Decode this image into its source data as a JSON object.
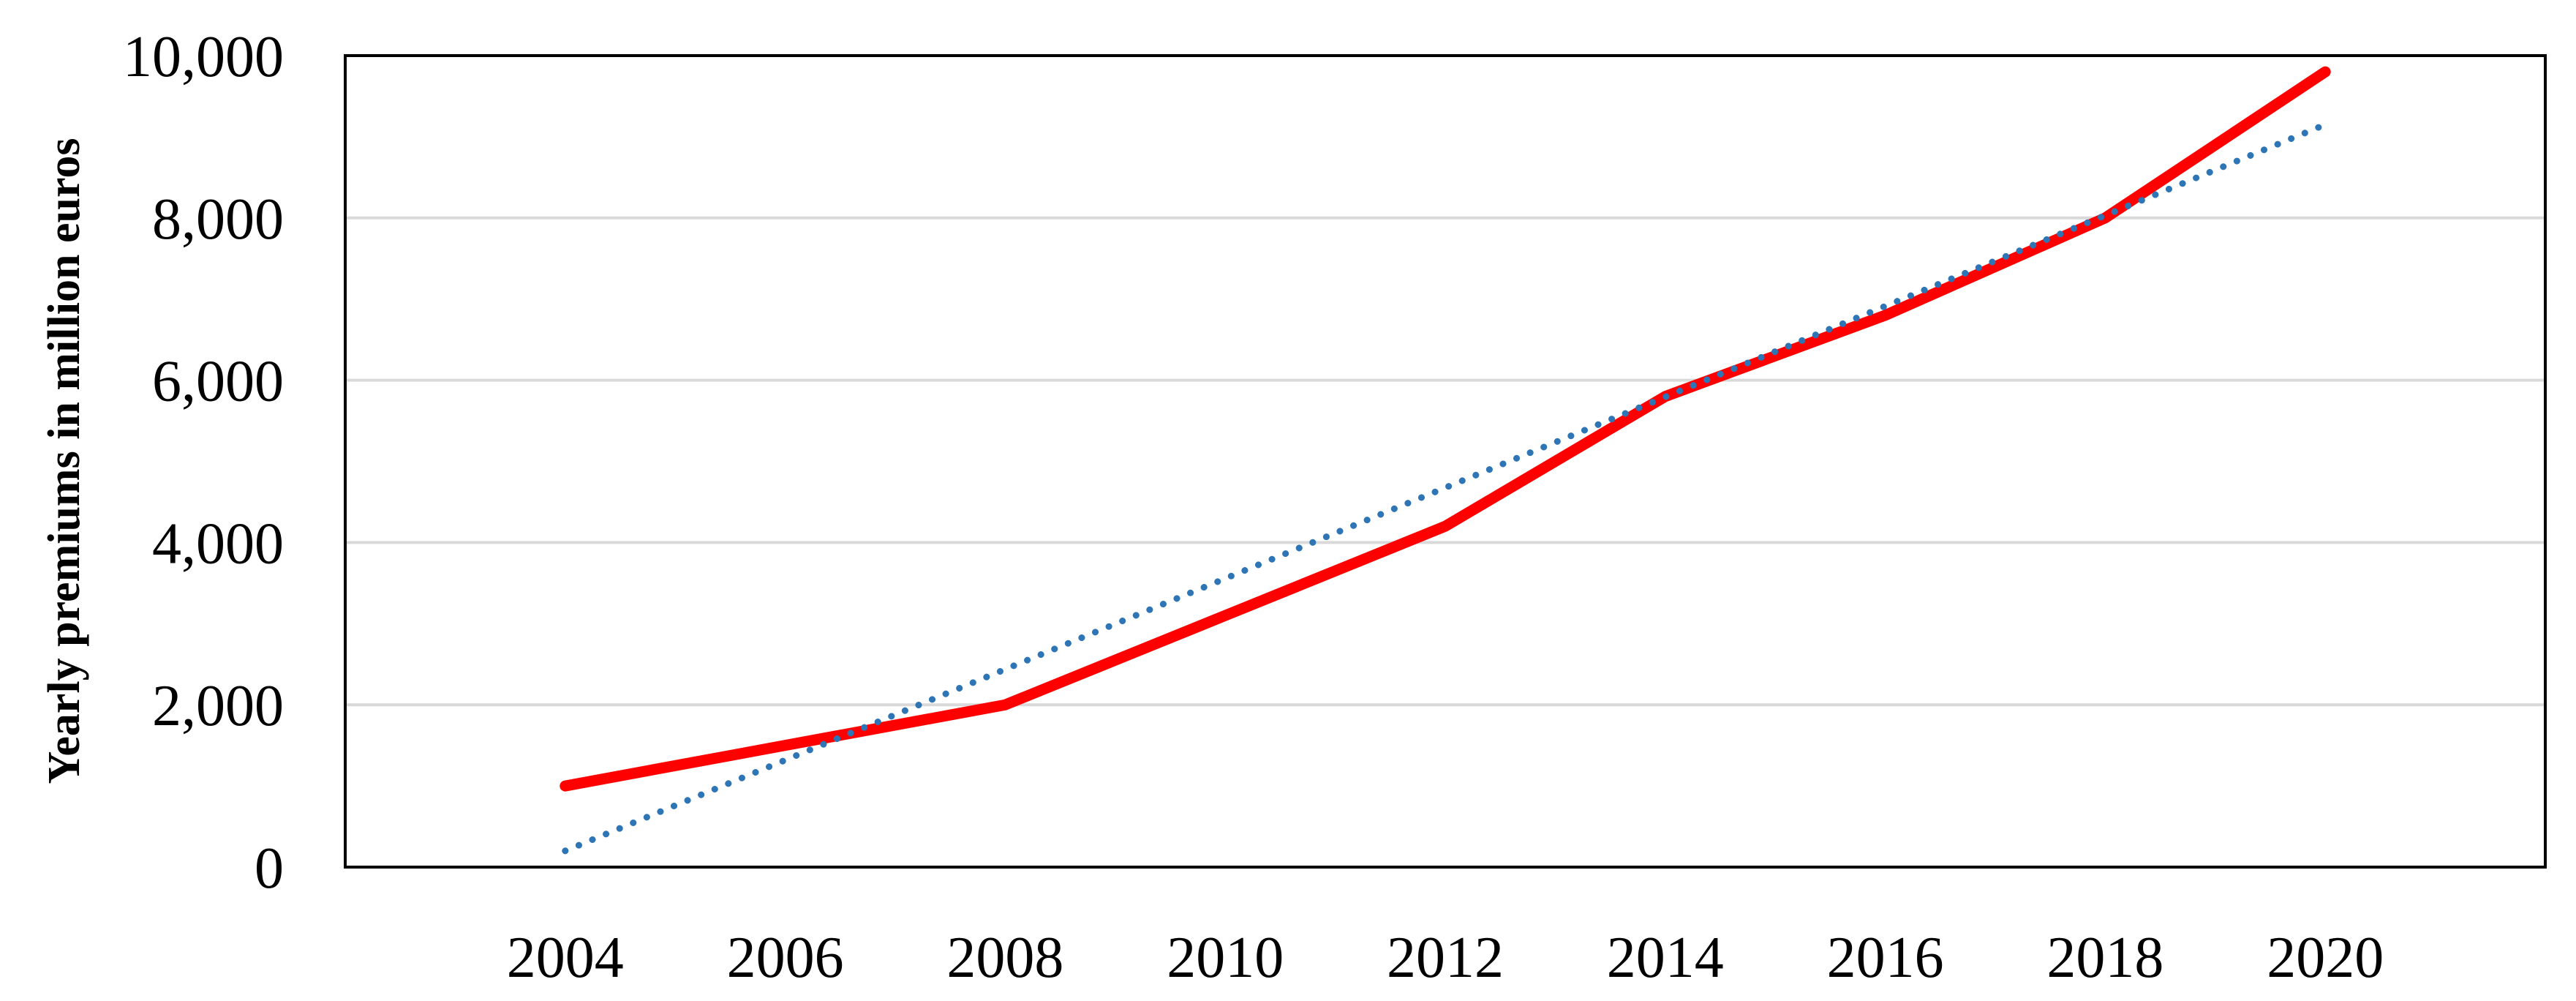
{
  "chart_data": {
    "type": "line",
    "title": "",
    "xlabel": "",
    "ylabel": "Yearly premiums in million euros",
    "x": [
      2004,
      2006,
      2008,
      2010,
      2012,
      2014,
      2016,
      2018,
      2020
    ],
    "x_tick_labels": [
      "2004",
      "2006",
      "2008",
      "2010",
      "2012",
      "2014",
      "2016",
      "2018",
      "2020"
    ],
    "y_tick_labels": [
      "0",
      "2,000",
      "4,000",
      "6,000",
      "8,000",
      "10,000"
    ],
    "y_ticks": [
      0,
      2000,
      4000,
      6000,
      8000,
      10000
    ],
    "xlim": [
      2002,
      2022
    ],
    "ylim": [
      0,
      10000
    ],
    "grid": "horizontal",
    "legend": "none",
    "series": [
      {
        "style": "solid",
        "color": "#ff0000",
        "x": [
          2004,
          2006,
          2008,
          2010,
          2012,
          2014,
          2016,
          2018,
          2020
        ],
        "values": [
          1000,
          1500,
          2000,
          3100,
          4200,
          5800,
          6800,
          8000,
          9800
        ]
      },
      {
        "style": "dotted",
        "color": "#2e75b6",
        "x": [
          2004,
          2020
        ],
        "values": [
          200,
          9150
        ]
      }
    ]
  }
}
